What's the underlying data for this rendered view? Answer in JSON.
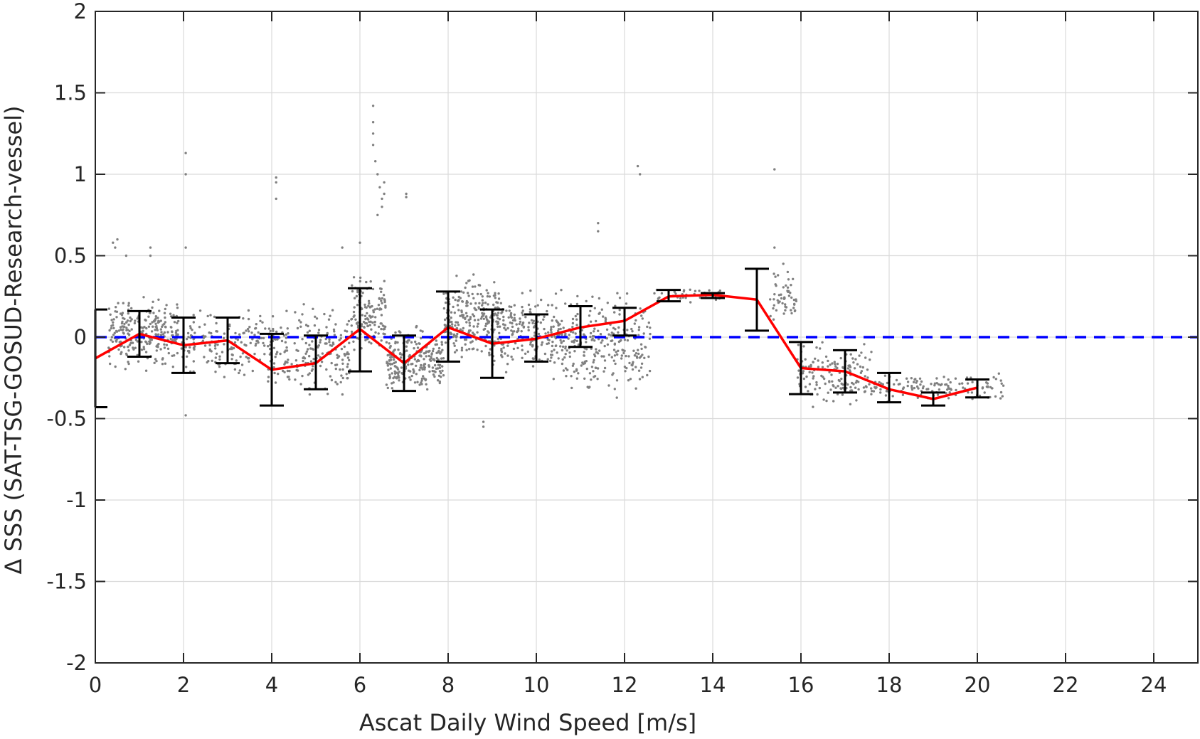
{
  "chart_data": {
    "type": "scatter",
    "xlabel": "Ascat Daily Wind Speed [m/s]",
    "ylabel": "Δ SSS (SAT-TSG-GOSUD-Research-vessel)",
    "xlim": [
      0,
      25
    ],
    "ylim": [
      -2,
      2
    ],
    "xticks": [
      0,
      2,
      4,
      6,
      8,
      10,
      12,
      14,
      16,
      18,
      20,
      22,
      24
    ],
    "yticks": [
      -2,
      -1.5,
      -1,
      -0.5,
      0,
      0.5,
      1,
      1.5,
      2
    ],
    "grid": true,
    "colors": {
      "scatter": "#808080",
      "mean": "#ff0000",
      "errorbar": "#000000",
      "zero_line": "#0000ff"
    },
    "zero_line": {
      "y": 0,
      "style": "dashed"
    },
    "mean_line": {
      "x": [
        0,
        1,
        2,
        3,
        4,
        5,
        6,
        7,
        8,
        9,
        10,
        11,
        12,
        13,
        14,
        15,
        16,
        17,
        18,
        19,
        20
      ],
      "y": [
        -0.13,
        0.02,
        -0.05,
        -0.02,
        -0.2,
        -0.16,
        0.05,
        -0.16,
        0.06,
        -0.04,
        -0.01,
        0.06,
        0.1,
        0.25,
        0.26,
        0.23,
        -0.19,
        -0.21,
        -0.32,
        -0.38,
        -0.31
      ]
    },
    "error_bars": [
      {
        "x": 0,
        "low": -0.43,
        "high": 0.17
      },
      {
        "x": 1,
        "low": -0.12,
        "high": 0.16
      },
      {
        "x": 2,
        "low": -0.22,
        "high": 0.12
      },
      {
        "x": 3,
        "low": -0.16,
        "high": 0.12
      },
      {
        "x": 4,
        "low": -0.42,
        "high": 0.02
      },
      {
        "x": 5,
        "low": -0.32,
        "high": 0.01
      },
      {
        "x": 6,
        "low": -0.21,
        "high": 0.3
      },
      {
        "x": 7,
        "low": -0.33,
        "high": 0.01
      },
      {
        "x": 8,
        "low": -0.15,
        "high": 0.28
      },
      {
        "x": 9,
        "low": -0.25,
        "high": 0.17
      },
      {
        "x": 10,
        "low": -0.15,
        "high": 0.14
      },
      {
        "x": 11,
        "low": -0.06,
        "high": 0.19
      },
      {
        "x": 12,
        "low": 0.01,
        "high": 0.18
      },
      {
        "x": 13,
        "low": 0.22,
        "high": 0.29
      },
      {
        "x": 14,
        "low": 0.24,
        "high": 0.27
      },
      {
        "x": 15,
        "low": 0.04,
        "high": 0.42
      },
      {
        "x": 16,
        "low": -0.35,
        "high": -0.03
      },
      {
        "x": 17,
        "low": -0.34,
        "high": -0.08
      },
      {
        "x": 18,
        "low": -0.4,
        "high": -0.22
      },
      {
        "x": 19,
        "low": -0.42,
        "high": -0.34
      },
      {
        "x": 20,
        "low": -0.37,
        "high": -0.26
      }
    ],
    "scatter_clusters": [
      {
        "x0": 0.3,
        "x1": 1.9,
        "ymin": -0.25,
        "ymax": 0.3,
        "n": 260
      },
      {
        "x0": 1.9,
        "x1": 3.8,
        "ymin": -0.28,
        "ymax": 0.22,
        "n": 160
      },
      {
        "x0": 3.8,
        "x1": 5.8,
        "ymin": -0.45,
        "ymax": 0.25,
        "n": 220
      },
      {
        "x0": 5.8,
        "x1": 6.6,
        "ymin": -0.2,
        "ymax": 0.45,
        "n": 140
      },
      {
        "x0": 6.6,
        "x1": 7.9,
        "ymin": -0.4,
        "ymax": 0.1,
        "n": 240
      },
      {
        "x0": 7.9,
        "x1": 9.2,
        "ymin": -0.25,
        "ymax": 0.48,
        "n": 260
      },
      {
        "x0": 9.2,
        "x1": 10.6,
        "ymin": -0.3,
        "ymax": 0.35,
        "n": 200
      },
      {
        "x0": 10.6,
        "x1": 12.6,
        "ymin": -0.42,
        "ymax": 0.35,
        "n": 260
      },
      {
        "x0": 12.6,
        "x1": 14.2,
        "ymin": 0.2,
        "ymax": 0.32,
        "n": 40
      },
      {
        "x0": 15.3,
        "x1": 15.9,
        "ymin": 0.05,
        "ymax": 0.45,
        "n": 50
      },
      {
        "x0": 15.9,
        "x1": 17.6,
        "ymin": -0.48,
        "ymax": 0.0,
        "n": 150
      },
      {
        "x0": 17.6,
        "x1": 20.6,
        "ymin": -0.42,
        "ymax": -0.2,
        "n": 130
      }
    ],
    "scatter_outliers": [
      [
        0.4,
        0.58
      ],
      [
        0.45,
        0.55
      ],
      [
        0.5,
        0.6
      ],
      [
        0.7,
        0.5
      ],
      [
        1.25,
        0.55
      ],
      [
        1.25,
        0.5
      ],
      [
        2.05,
        1.13
      ],
      [
        2.05,
        1.0
      ],
      [
        2.05,
        0.55
      ],
      [
        2.05,
        -0.48
      ],
      [
        4.1,
        0.98
      ],
      [
        4.1,
        0.95
      ],
      [
        4.1,
        0.85
      ],
      [
        5.6,
        0.55
      ],
      [
        6.0,
        0.58
      ],
      [
        6.3,
        1.42
      ],
      [
        6.3,
        1.32
      ],
      [
        6.3,
        1.25
      ],
      [
        6.3,
        1.18
      ],
      [
        6.35,
        1.08
      ],
      [
        6.4,
        1.0
      ],
      [
        6.45,
        0.92
      ],
      [
        6.5,
        0.85
      ],
      [
        6.5,
        0.8
      ],
      [
        6.4,
        0.75
      ],
      [
        6.55,
        0.95
      ],
      [
        6.55,
        0.88
      ],
      [
        7.05,
        0.88
      ],
      [
        7.05,
        0.86
      ],
      [
        8.8,
        -0.55
      ],
      [
        8.8,
        -0.52
      ],
      [
        11.4,
        0.7
      ],
      [
        11.4,
        0.65
      ],
      [
        12.3,
        1.05
      ],
      [
        12.35,
        1.0
      ],
      [
        15.4,
        1.03
      ],
      [
        15.4,
        0.55
      ],
      [
        15.6,
        0.45
      ],
      [
        15.7,
        0.4
      ]
    ]
  }
}
